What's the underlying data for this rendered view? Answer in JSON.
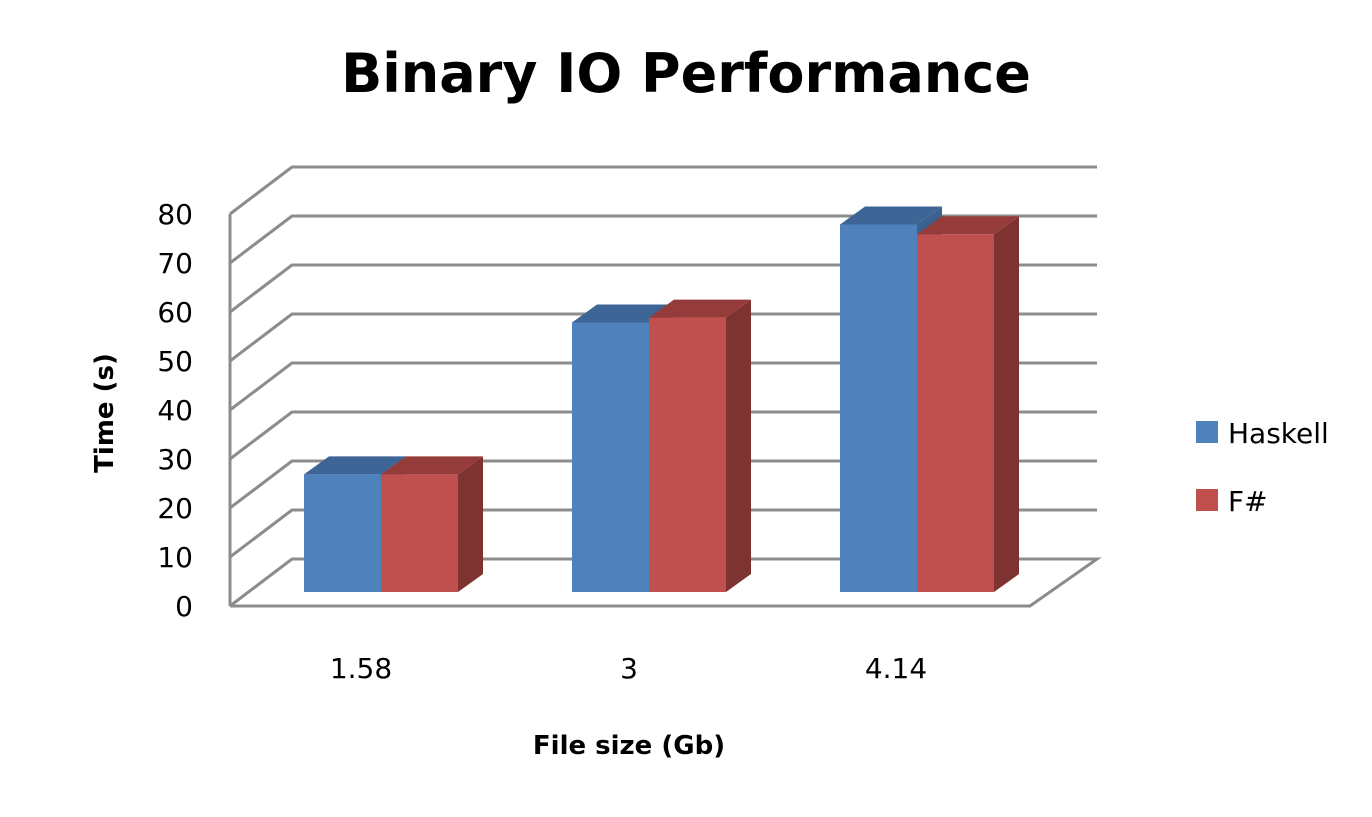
{
  "chart_data": {
    "type": "bar",
    "title": "Binary IO Performance",
    "xlabel": "File size (Gb)",
    "ylabel": "Time (s)",
    "categories": [
      "1.58",
      "3",
      "4.14"
    ],
    "series": [
      {
        "name": "Haskell",
        "values": [
          24,
          55,
          75
        ],
        "color": "#4f81bd",
        "top": "#3d6596",
        "side": "#3a6190"
      },
      {
        "name": "F#",
        "values": [
          24,
          56,
          73
        ],
        "color": "#c0504d",
        "top": "#953c3a",
        "side": "#7f3331"
      }
    ],
    "ylim": [
      0,
      80
    ],
    "yticks": [
      "0",
      "10",
      "20",
      "30",
      "40",
      "50",
      "60",
      "70",
      "80"
    ],
    "grid": true,
    "legend": "right",
    "style": "3d-clustered-column"
  }
}
